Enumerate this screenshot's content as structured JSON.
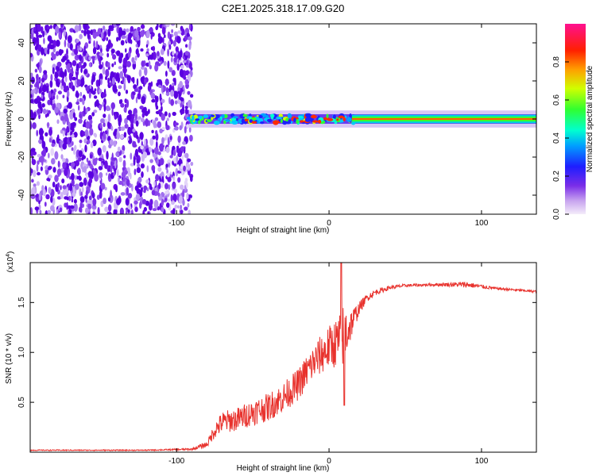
{
  "title": "C2E1.2025.318.17.09.G20",
  "chart_data": [
    {
      "type": "heatmap",
      "name": "spectrogram",
      "xlabel": "Height of straight line (km)",
      "ylabel": "Frequency (Hz)",
      "xlim": [
        -196,
        136
      ],
      "ylim": [
        -50,
        50
      ],
      "xticks": [
        -100,
        0,
        100
      ],
      "xtick_labels": [
        "-100",
        "0",
        "100"
      ],
      "yticks": [
        -40,
        -20,
        0,
        20,
        40
      ],
      "ytick_labels": [
        "-40",
        "-20",
        "0",
        "20",
        "40"
      ],
      "colorbar": {
        "label": "Normalized spectral amplitude",
        "range": [
          0,
          1
        ],
        "ticks": [
          0,
          0.2,
          0.4,
          0.6,
          0.8
        ],
        "tick_labels": [
          "0.0",
          "0.2",
          "0.4",
          "0.6",
          "0.8"
        ]
      },
      "noise_region_x": [
        -196,
        -90
      ],
      "signal_band_start_x": -92,
      "signal_band_center_hz": 0,
      "signal_band_halfwidth_hz": 4
    },
    {
      "type": "line",
      "name": "snr",
      "xlabel": "Height of straight line (km)",
      "ylabel": "SNR (10 * v/v)",
      "y_scale_label": "(x10",
      "y_scale_exp": "4",
      "xlim": [
        -196,
        136
      ],
      "ylim": [
        0,
        1.9
      ],
      "xticks": [
        -100,
        0,
        100
      ],
      "xtick_labels": [
        "-100",
        "0",
        "100"
      ],
      "yticks": [
        0.5,
        1.0,
        1.5
      ],
      "ytick_labels": [
        "0.5",
        "1.0",
        "1.5"
      ],
      "color": "#e8322d",
      "x": [
        -196,
        -120,
        -90,
        -80,
        -75,
        -70,
        -60,
        -50,
        -40,
        -30,
        -20,
        -15,
        -10,
        -5,
        0,
        5,
        8,
        10,
        12,
        15,
        20,
        25,
        30,
        40,
        50,
        70,
        90,
        110,
        136
      ],
      "y": [
        0.02,
        0.02,
        0.03,
        0.08,
        0.22,
        0.3,
        0.33,
        0.4,
        0.45,
        0.55,
        0.68,
        0.8,
        0.9,
        0.98,
        1.05,
        1.1,
        1.15,
        1.18,
        1.22,
        1.3,
        1.45,
        1.55,
        1.6,
        1.65,
        1.67,
        1.68,
        1.68,
        1.64,
        1.61
      ],
      "noise_amp": [
        0.005,
        0.005,
        0.01,
        0.03,
        0.08,
        0.11,
        0.12,
        0.13,
        0.14,
        0.15,
        0.16,
        0.17,
        0.18,
        0.2,
        0.22,
        0.25,
        0.3,
        0.35,
        0.25,
        0.14,
        0.06,
        0.04,
        0.03,
        0.02,
        0.015,
        0.015,
        0.03,
        0.012,
        0.012
      ]
    }
  ]
}
